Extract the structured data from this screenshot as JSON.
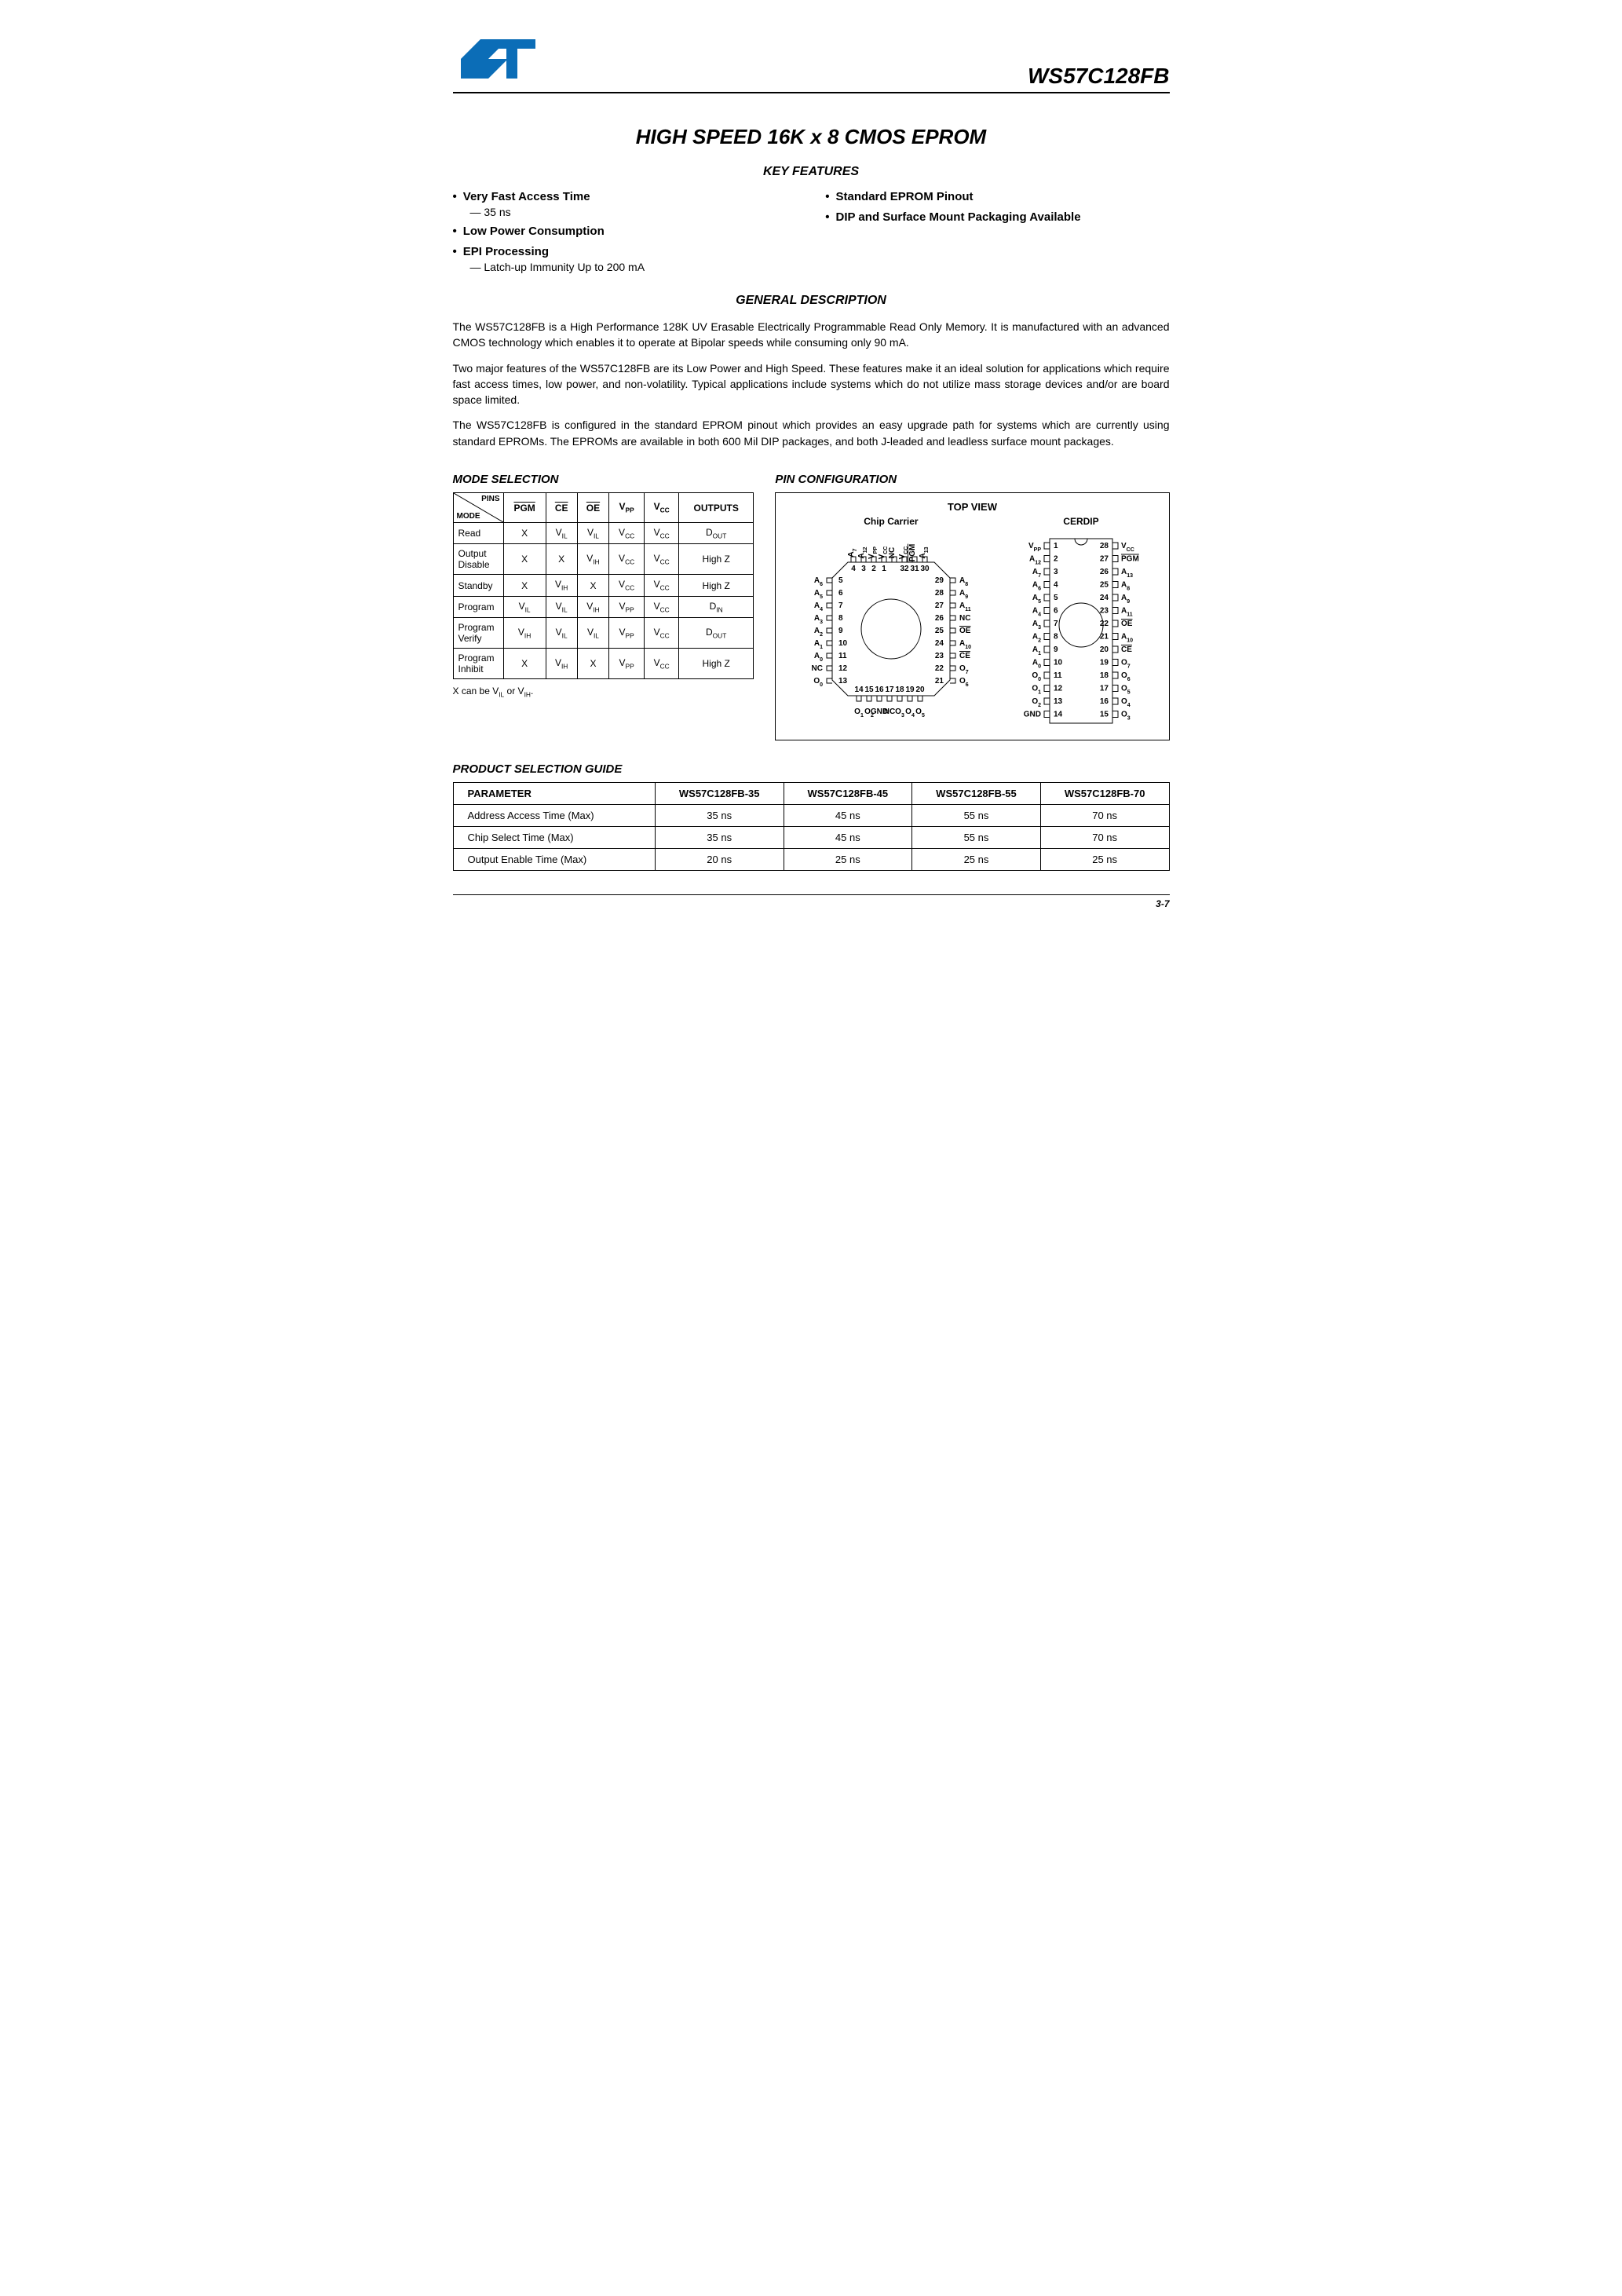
{
  "header": {
    "logo_primary": "#0b6db7",
    "part_number": "WS57C128FB"
  },
  "main_title": "HIGH SPEED 16K x 8 CMOS EPROM",
  "sections": {
    "key_features": "KEY FEATURES",
    "general_desc": "GENERAL DESCRIPTION",
    "mode_sel": "MODE SELECTION",
    "pin_conf": "PIN CONFIGURATION",
    "psg": "PRODUCT SELECTION GUIDE"
  },
  "features_left": [
    {
      "title": "Very Fast Access Time",
      "sub": "— 35 ns"
    },
    {
      "title": "Low Power Consumption",
      "sub": ""
    },
    {
      "title": "EPI Processing",
      "sub": "— Latch-up Immunity Up to 200 mA"
    }
  ],
  "features_right": [
    {
      "title": "Standard EPROM Pinout",
      "sub": ""
    },
    {
      "title": "DIP and Surface Mount Packaging Available",
      "sub": ""
    }
  ],
  "description": [
    "The WS57C128FB is a High Performance 128K UV Erasable Electrically Programmable Read Only Memory. It is manufactured with an advanced CMOS technology which enables it to operate at Bipolar speeds while consuming only 90 mA.",
    "Two major features of the WS57C128FB are its Low Power and High Speed. These features make it an ideal solution for applications which require fast access times, low power, and non-volatility. Typical applications include systems which do not utilize mass storage devices and/or are board space limited.",
    "The WS57C128FB is configured in the standard EPROM pinout which provides an easy upgrade path for systems which are currently using standard EPROMs. The EPROMs are available in both 600 Mil DIP packages, and both J-leaded and leadless surface mount packages."
  ],
  "mode_table": {
    "header_pins": "PINS",
    "header_mode": "MODE",
    "cols": [
      "PGM_ov",
      "CE_ov",
      "OE_ov",
      "VPP",
      "VCC",
      "OUTPUTS"
    ],
    "rows": [
      {
        "mode": "Read",
        "c": [
          "X",
          "VIL",
          "VIL",
          "VCC",
          "VCC",
          "DOUT"
        ]
      },
      {
        "mode": "Output Disable",
        "c": [
          "X",
          "X",
          "VIH",
          "VCC",
          "VCC",
          "High Z"
        ]
      },
      {
        "mode": "Standby",
        "c": [
          "X",
          "VIH",
          "X",
          "VCC",
          "VCC",
          "High Z"
        ]
      },
      {
        "mode": "Program",
        "c": [
          "VIL",
          "VIL",
          "VIH",
          "VPP",
          "VCC",
          "DIN"
        ]
      },
      {
        "mode": "Program Verify",
        "c": [
          "VIH",
          "VIL",
          "VIL",
          "VPP",
          "VCC",
          "DOUT"
        ]
      },
      {
        "mode": "Program Inhibit",
        "c": [
          "X",
          "VIH",
          "X",
          "VPP",
          "VCC",
          "High Z"
        ]
      }
    ],
    "note": "X can be VIL or VIH."
  },
  "pin_config": {
    "top_view": "TOP VIEW",
    "chip_carrier": "Chip Carrier",
    "cerdip": "CERDIP",
    "cc_top_left": [
      "A7",
      "A12",
      "VPP",
      "VCC",
      "NC"
    ],
    "cc_top_right": [
      "VCC",
      "PGM_ov",
      "A13"
    ],
    "cc_left": [
      {
        "n": "5",
        "l": "A6"
      },
      {
        "n": "6",
        "l": "A5"
      },
      {
        "n": "7",
        "l": "A4"
      },
      {
        "n": "8",
        "l": "A3"
      },
      {
        "n": "9",
        "l": "A2"
      },
      {
        "n": "10",
        "l": "A1"
      },
      {
        "n": "11",
        "l": "A0"
      },
      {
        "n": "12",
        "l": "NC"
      },
      {
        "n": "13",
        "l": "O0"
      }
    ],
    "cc_right": [
      {
        "n": "29",
        "l": "A8"
      },
      {
        "n": "28",
        "l": "A9"
      },
      {
        "n": "27",
        "l": "A11"
      },
      {
        "n": "26",
        "l": "NC"
      },
      {
        "n": "25",
        "l": "OE_ov"
      },
      {
        "n": "24",
        "l": "A10"
      },
      {
        "n": "23",
        "l": "CE_ov"
      },
      {
        "n": "22",
        "l": "O7"
      },
      {
        "n": "21",
        "l": "O6"
      }
    ],
    "cc_bottom_labels": [
      "O1",
      "O2",
      "GND",
      "NC",
      "O3",
      "O4",
      "O5"
    ],
    "cc_bottom_nums": [
      "14",
      "15",
      "16",
      "17",
      "18",
      "19",
      "20"
    ],
    "cc_top_nums_left": [
      "4",
      "3",
      "2",
      "1"
    ],
    "cc_top_nums_right": [
      "32",
      "31",
      "30"
    ],
    "dip_left": [
      {
        "n": "1",
        "l": "VPP"
      },
      {
        "n": "2",
        "l": "A12"
      },
      {
        "n": "3",
        "l": "A7"
      },
      {
        "n": "4",
        "l": "A6"
      },
      {
        "n": "5",
        "l": "A5"
      },
      {
        "n": "6",
        "l": "A4"
      },
      {
        "n": "7",
        "l": "A3"
      },
      {
        "n": "8",
        "l": "A2"
      },
      {
        "n": "9",
        "l": "A1"
      },
      {
        "n": "10",
        "l": "A0"
      },
      {
        "n": "11",
        "l": "O0"
      },
      {
        "n": "12",
        "l": "O1"
      },
      {
        "n": "13",
        "l": "O2"
      },
      {
        "n": "14",
        "l": "GND"
      }
    ],
    "dip_right": [
      {
        "n": "28",
        "l": "VCC"
      },
      {
        "n": "27",
        "l": "PGM_ov"
      },
      {
        "n": "26",
        "l": "A13"
      },
      {
        "n": "25",
        "l": "A8"
      },
      {
        "n": "24",
        "l": "A9"
      },
      {
        "n": "23",
        "l": "A11"
      },
      {
        "n": "22",
        "l": "OE_ov"
      },
      {
        "n": "21",
        "l": "A10"
      },
      {
        "n": "20",
        "l": "CE_ov"
      },
      {
        "n": "19",
        "l": "O7"
      },
      {
        "n": "18",
        "l": "O6"
      },
      {
        "n": "17",
        "l": "O5"
      },
      {
        "n": "16",
        "l": "O4"
      },
      {
        "n": "15",
        "l": "O3"
      }
    ]
  },
  "psg": {
    "header": [
      "PARAMETER",
      "WS57C128FB-35",
      "WS57C128FB-45",
      "WS57C128FB-55",
      "WS57C128FB-70"
    ],
    "rows": [
      [
        "Address Access Time (Max)",
        "35 ns",
        "45 ns",
        "55 ns",
        "70 ns"
      ],
      [
        "Chip Select Time (Max)",
        "35 ns",
        "45 ns",
        "55 ns",
        "70 ns"
      ],
      [
        "Output Enable Time (Max)",
        "20 ns",
        "25 ns",
        "25 ns",
        "25 ns"
      ]
    ]
  },
  "footer": "3-7",
  "colors": {
    "text": "#000000",
    "accent": "#0b6db7",
    "background": "#ffffff"
  }
}
